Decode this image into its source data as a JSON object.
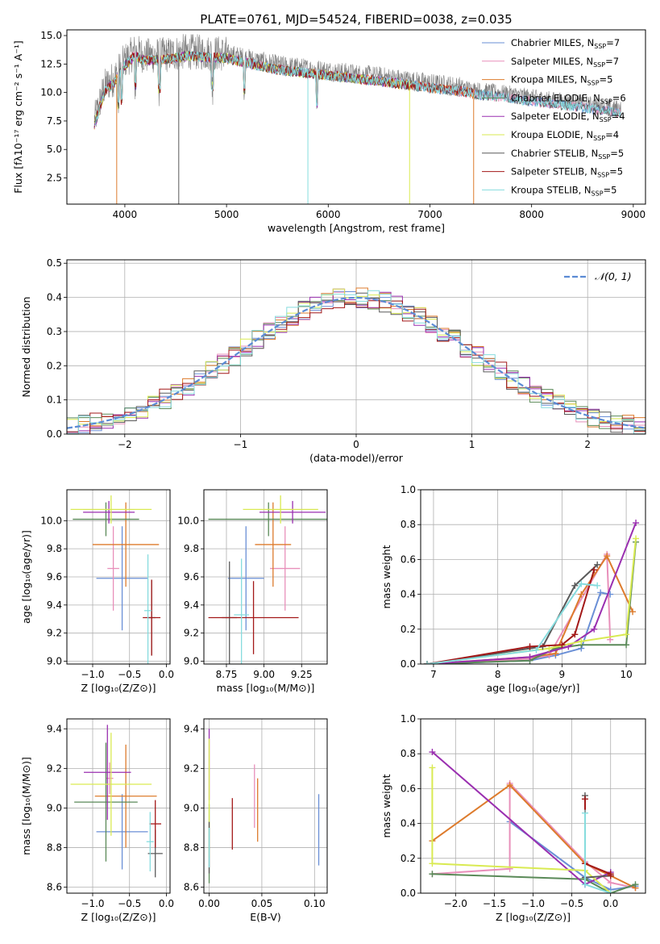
{
  "colors": [
    "#6a8fd6",
    "#e88fba",
    "#dd7b2c",
    "#5a8a58",
    "#9a2fb0",
    "#d9ea52",
    "#5a5a5a",
    "#a31818",
    "#86dcde"
  ],
  "chart_data": [
    {
      "id": "spectrum",
      "type": "line",
      "title": "PLATE=0761, MJD=54524, FIBERID=0038, z=0.035",
      "xlabel": "wavelength [Angstrom, rest frame]",
      "ylabel": "Flux [fλ10⁻¹⁷ erg cm⁻² s⁻¹ A⁻¹]",
      "xlim": [
        3430,
        9120
      ],
      "ylim": [
        0.2,
        15.5
      ],
      "xticks": [
        4000,
        5000,
        6000,
        7000,
        8000,
        9000
      ],
      "yticks": [
        2.5,
        5.0,
        7.5,
        10.0,
        12.5,
        15.0
      ],
      "ytick_labels": [
        "2.5",
        "5.0",
        "7.5",
        "10.0",
        "12.5",
        "15.0"
      ],
      "legend_position": "top-right",
      "legend": [
        {
          "label": "Chabrier MILES, N",
          "sub": "SSP",
          "suffix": "=7"
        },
        {
          "label": "Salpeter MILES, N",
          "sub": "SSP",
          "suffix": "=7"
        },
        {
          "label": "Kroupa MILES, N",
          "sub": "SSP",
          "suffix": "=5"
        },
        {
          "label": "Chabrier ELODIE, N",
          "sub": "SSP",
          "suffix": "=6"
        },
        {
          "label": "Salpeter ELODIE, N",
          "sub": "SSP",
          "suffix": "=4"
        },
        {
          "label": "Kroupa ELODIE, N",
          "sub": "SSP",
          "suffix": "=4"
        },
        {
          "label": "Chabrier STELIB, N",
          "sub": "SSP",
          "suffix": "=5"
        },
        {
          "label": "Salpeter STELIB, N",
          "sub": "SSP",
          "suffix": "=5"
        },
        {
          "label": "Kroupa STELIB, N",
          "sub": "SSP",
          "suffix": "=5"
        }
      ],
      "envelope": {
        "x": [
          3700,
          3800,
          3900,
          4000,
          4100,
          4200,
          4400,
          4600,
          4800,
          5000,
          5200,
          5500,
          5800,
          6000,
          6300,
          6600,
          7000,
          7300,
          7500,
          7800,
          8100,
          8400,
          8700,
          8900
        ],
        "y": [
          7.5,
          10.5,
          11.3,
          12.8,
          13.6,
          13.2,
          13.3,
          13.6,
          13.5,
          13.4,
          13.0,
          12.4,
          12.1,
          11.9,
          11.6,
          11.3,
          10.8,
          10.5,
          10.2,
          9.9,
          9.5,
          9.2,
          8.8,
          8.6
        ]
      }
    },
    {
      "id": "residuals",
      "type": "bar",
      "xlabel": "(data-model)/error",
      "ylabel": "Normed distribution",
      "xlim": [
        -2.5,
        2.5
      ],
      "ylim": [
        0,
        0.51
      ],
      "xticks": [
        -2,
        -1,
        0,
        1,
        2
      ],
      "xtick_labels": [
        "−2",
        "−1",
        "0",
        "1",
        "2"
      ],
      "yticks": [
        0.0,
        0.1,
        0.2,
        0.3,
        0.4,
        0.5
      ],
      "ytick_labels": [
        "0.0",
        "0.1",
        "0.2",
        "0.3",
        "0.4",
        "0.5"
      ],
      "bin_width": 0.1,
      "legend": [
        {
          "label": "𝒩(0, 1)",
          "style": "dashed"
        }
      ],
      "legend_position": "top-right"
    },
    {
      "id": "age-vs-Z",
      "type": "scatter",
      "xlabel": "Z [log₁₀(Z/Z⊙)]",
      "ylabel": "age  [log₁₀(age/yr)]",
      "xlim": [
        -1.35,
        0.05
      ],
      "ylim": [
        8.98,
        10.22
      ],
      "xticks": [
        -1.0,
        -0.5,
        0.0
      ],
      "xtick_labels": [
        "−1.0",
        "−0.5",
        "0.0"
      ],
      "yticks": [
        9.0,
        9.2,
        9.4,
        9.6,
        9.8,
        10.0
      ],
      "ytick_labels": [
        "9.0",
        "9.2",
        "9.4",
        "9.6",
        "9.8",
        "10.0"
      ],
      "points": [
        {
          "x": -0.6,
          "xerr": 0.35,
          "y": 9.59,
          "yerr": 0.37
        },
        {
          "x": -0.72,
          "xerr": 0.08,
          "y": 9.66,
          "yerr": 0.3
        },
        {
          "x": -0.55,
          "xerr": 0.45,
          "y": 9.83,
          "yerr": 0.3
        },
        {
          "x": -0.82,
          "xerr": 0.45,
          "y": 10.01,
          "yerr": 0.12
        },
        {
          "x": -0.78,
          "xerr": 0.35,
          "y": 10.06,
          "yerr": 0.08
        },
        {
          "x": -0.75,
          "xerr": 0.55,
          "y": 10.08,
          "yerr": 0.1
        },
        {
          "x": -0.2,
          "xerr": 0.05,
          "y": 9.31,
          "yerr": 0.27
        },
        {
          "x": -0.2,
          "xerr": 0.12,
          "y": 9.31,
          "yerr": 0.27
        },
        {
          "x": -0.25,
          "xerr": 0.05,
          "y": 9.36,
          "yerr": 0.4
        }
      ]
    },
    {
      "id": "age-vs-mass",
      "type": "scatter",
      "xlabel": "mass [log₁₀(M/M⊙)]",
      "ylabel": "",
      "xlim": [
        8.6,
        9.42
      ],
      "ylim": [
        8.98,
        10.22
      ],
      "xticks": [
        8.75,
        9.0,
        9.25
      ],
      "xtick_labels": [
        "8.75",
        "9.00",
        "9.25"
      ],
      "yticks": [
        9.0,
        9.2,
        9.4,
        9.6,
        9.8,
        10.0
      ],
      "ytick_labels": [
        "9.0",
        "9.2",
        "9.4",
        "9.6",
        "9.8",
        "10.0"
      ],
      "points": [
        {
          "x": 8.88,
          "xerr": 0.12,
          "y": 9.59,
          "yerr": 0.37
        },
        {
          "x": 9.14,
          "xerr": 0.1,
          "y": 9.66,
          "yerr": 0.3
        },
        {
          "x": 9.06,
          "xerr": 0.12,
          "y": 9.83,
          "yerr": 0.3
        },
        {
          "x": 9.03,
          "xerr": 0.4,
          "y": 10.01,
          "yerr": 0.12
        },
        {
          "x": 9.19,
          "xerr": 0.22,
          "y": 10.06,
          "yerr": 0.08
        },
        {
          "x": 9.11,
          "xerr": 0.25,
          "y": 10.08,
          "yerr": 0.1
        },
        {
          "x": 8.77,
          "xerr": 0.05,
          "y": 9.31,
          "yerr": 0.4
        },
        {
          "x": 8.93,
          "xerr": 0.3,
          "y": 9.31,
          "yerr": 0.26
        },
        {
          "x": 8.85,
          "xerr": 0.05,
          "y": 9.33,
          "yerr": 0.4
        }
      ]
    },
    {
      "id": "mass-weight-vs-age",
      "type": "line",
      "xlabel": "age  [log₁₀(age/yr)]",
      "ylabel": "mass weight",
      "xlim": [
        6.8,
        10.3
      ],
      "ylim": [
        0,
        1.0
      ],
      "xticks": [
        7,
        8,
        9,
        10
      ],
      "xtick_labels": [
        "7",
        "8",
        "9",
        "10"
      ],
      "yticks": [
        0.0,
        0.2,
        0.4,
        0.6,
        0.8,
        1.0
      ],
      "ytick_labels": [
        "0.0",
        "0.2",
        "0.4",
        "0.6",
        "0.8",
        "1.0"
      ],
      "series": [
        {
          "x": [
            6.9,
            8.5,
            8.9,
            9.3,
            9.6,
            9.75
          ],
          "y": [
            0.0,
            0.02,
            0.05,
            0.09,
            0.41,
            0.4
          ]
        },
        {
          "x": [
            6.9,
            8.5,
            8.8,
            9.7,
            9.75
          ],
          "y": [
            0.0,
            0.03,
            0.05,
            0.63,
            0.14
          ]
        },
        {
          "x": [
            6.9,
            8.5,
            8.9,
            9.3,
            9.7,
            10.1
          ],
          "y": [
            0.0,
            0.04,
            0.06,
            0.4,
            0.62,
            0.3
          ]
        },
        {
          "x": [
            6.9,
            8.5,
            8.9,
            9.3,
            10.0,
            10.15
          ],
          "y": [
            0.0,
            0.02,
            0.09,
            0.11,
            0.11,
            0.7
          ]
        },
        {
          "x": [
            6.9,
            8.5,
            9.1,
            9.5,
            10.15
          ],
          "y": [
            0.0,
            0.04,
            0.1,
            0.2,
            0.81
          ]
        },
        {
          "x": [
            6.9,
            8.8,
            9.3,
            10.0,
            10.15
          ],
          "y": [
            0.0,
            0.09,
            0.13,
            0.17,
            0.72
          ]
        },
        {
          "x": [
            6.9,
            8.5,
            8.7,
            9.2,
            9.55
          ],
          "y": [
            0.0,
            0.09,
            0.1,
            0.45,
            0.57
          ]
        },
        {
          "x": [
            6.9,
            8.5,
            9.0,
            9.2,
            9.5
          ],
          "y": [
            0.0,
            0.1,
            0.11,
            0.17,
            0.54
          ]
        },
        {
          "x": [
            6.9,
            8.6,
            9.3,
            9.55
          ],
          "y": [
            0.0,
            0.08,
            0.46,
            0.45
          ]
        }
      ]
    },
    {
      "id": "mass-vs-Z",
      "type": "scatter",
      "xlabel": "Z [log₁₀(Z/Z⊙)]",
      "ylabel": "mass [log₁₀(M/M⊙)]",
      "xlim": [
        -1.35,
        0.05
      ],
      "ylim": [
        8.57,
        9.45
      ],
      "xticks": [
        -1.0,
        -0.5,
        0.0
      ],
      "xtick_labels": [
        "−1.0",
        "−0.5",
        "0.0"
      ],
      "yticks": [
        8.6,
        8.8,
        9.0,
        9.2,
        9.4
      ],
      "ytick_labels": [
        "8.6",
        "8.8",
        "9.0",
        "9.2",
        "9.4"
      ],
      "points": [
        {
          "x": -0.6,
          "xerr": 0.35,
          "y": 8.88,
          "yerr": 0.19
        },
        {
          "x": -0.77,
          "xerr": 0.05,
          "y": 9.15,
          "yerr": 0.08
        },
        {
          "x": -0.55,
          "xerr": 0.42,
          "y": 9.06,
          "yerr": 0.26
        },
        {
          "x": -0.82,
          "xerr": 0.43,
          "y": 9.03,
          "yerr": 0.3
        },
        {
          "x": -0.8,
          "xerr": 0.32,
          "y": 9.18,
          "yerr": 0.24
        },
        {
          "x": -0.75,
          "xerr": 0.55,
          "y": 9.12,
          "yerr": 0.26
        },
        {
          "x": -0.15,
          "xerr": 0.1,
          "y": 8.77,
          "yerr": 0.12
        },
        {
          "x": -0.15,
          "xerr": 0.08,
          "y": 8.92,
          "yerr": 0.12
        },
        {
          "x": -0.22,
          "xerr": 0.05,
          "y": 8.83,
          "yerr": 0.15
        }
      ]
    },
    {
      "id": "mass-vs-EBV",
      "type": "scatter",
      "xlabel": "E(B-V)",
      "ylabel": "",
      "xlim": [
        -0.005,
        0.112
      ],
      "ylim": [
        8.57,
        9.45
      ],
      "xticks": [
        0.0,
        0.05,
        0.1
      ],
      "xtick_labels": [
        "0.00",
        "0.05",
        "0.10"
      ],
      "yticks": [
        8.6,
        8.8,
        9.0,
        9.2,
        9.4
      ],
      "ytick_labels": [
        "8.6",
        "8.8",
        "9.0",
        "9.2",
        "9.4"
      ],
      "points": [
        {
          "x": 0.104,
          "xerr": 0,
          "y": 8.89,
          "yerr": 0.18
        },
        {
          "x": 0.043,
          "xerr": 0,
          "y": 9.06,
          "yerr": 0.16
        },
        {
          "x": 0.046,
          "xerr": 0,
          "y": 8.99,
          "yerr": 0.16
        },
        {
          "x": 0.0,
          "xerr": 0,
          "y": 8.82,
          "yerr": 0.2
        },
        {
          "x": 0.0,
          "xerr": 0,
          "y": 9.22,
          "yerr": 0.18
        },
        {
          "x": 0.0,
          "xerr": 0,
          "y": 9.05,
          "yerr": 0.3
        },
        {
          "x": 0.0,
          "xerr": 0,
          "y": 8.8,
          "yerr": 0.13
        },
        {
          "x": 0.022,
          "xerr": 0,
          "y": 8.92,
          "yerr": 0.13
        },
        {
          "x": 0.0,
          "xerr": 0,
          "y": 8.8,
          "yerr": 0.1
        }
      ]
    },
    {
      "id": "mass-weight-vs-Z",
      "type": "line",
      "xlabel": "Z [log₁₀(Z/Z⊙)]",
      "ylabel": "mass weight",
      "xlim": [
        -2.45,
        0.45
      ],
      "ylim": [
        0,
        1.0
      ],
      "xticks": [
        -2.0,
        -1.5,
        -1.0,
        -0.5,
        0.0
      ],
      "xtick_labels": [
        "−2.0",
        "−1.5",
        "−1.0",
        "−0.5",
        "0.0"
      ],
      "yticks": [
        0.0,
        0.2,
        0.4,
        0.6,
        0.8,
        1.0
      ],
      "ytick_labels": [
        "0.0",
        "0.2",
        "0.4",
        "0.6",
        "0.8",
        "1.0"
      ],
      "series": [
        {
          "x": [
            -1.3,
            -0.33,
            0.0,
            0.32
          ],
          "y": [
            0.41,
            0.09,
            0.02,
            0.04
          ]
        },
        {
          "x": [
            -2.3,
            -1.3,
            -1.3,
            -0.33,
            0.0,
            0.32
          ],
          "y": [
            0.11,
            0.14,
            0.63,
            0.18,
            0.06,
            0.03
          ]
        },
        {
          "x": [
            -2.3,
            -1.3,
            -0.33,
            0.0,
            0.32
          ],
          "y": [
            0.3,
            0.62,
            0.17,
            0.1,
            0.03
          ]
        },
        {
          "x": [
            -2.3,
            -0.33,
            0.0,
            0.32
          ],
          "y": [
            0.11,
            0.08,
            0.0,
            0.05
          ]
        },
        {
          "x": [
            -2.3,
            -0.33,
            0.0
          ],
          "y": [
            0.81,
            0.05,
            0.12
          ]
        },
        {
          "x": [
            -2.3,
            -2.3,
            -0.33,
            0.0
          ],
          "y": [
            0.72,
            0.17,
            0.13,
            0.0
          ]
        },
        {
          "x": [
            -0.33,
            -0.33,
            0.0
          ],
          "y": [
            0.56,
            0.09,
            0.1
          ]
        },
        {
          "x": [
            -0.33,
            -0.33,
            0.0,
            0.0
          ],
          "y": [
            0.54,
            0.17,
            0.11,
            0.1
          ]
        },
        {
          "x": [
            -0.33,
            -0.33,
            0.0
          ],
          "y": [
            0.46,
            0.05,
            0.0
          ]
        }
      ]
    }
  ]
}
